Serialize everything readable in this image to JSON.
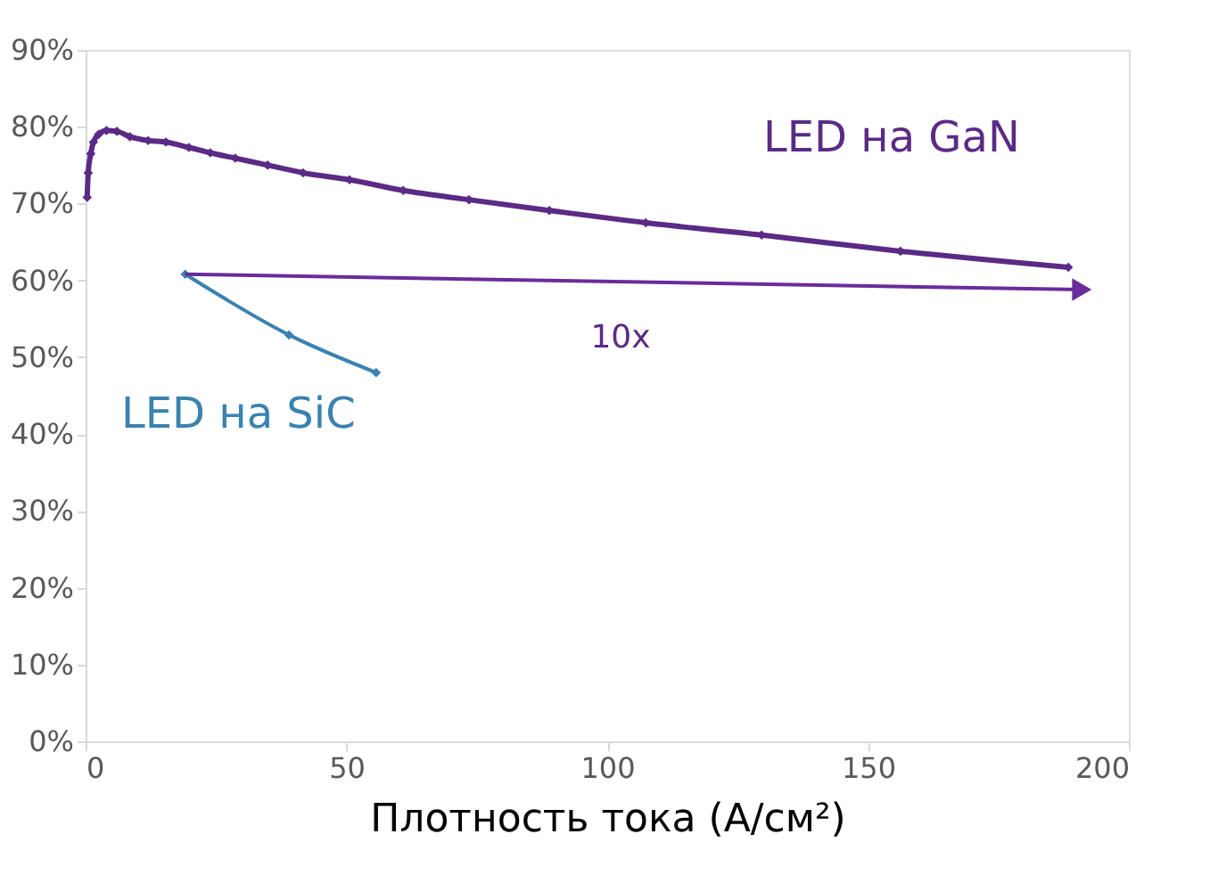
{
  "chart_data": {
    "type": "line",
    "xlabel": "Плотность тока (А/см²)",
    "xlim": [
      0,
      200
    ],
    "xticks": [
      0,
      50,
      100,
      150,
      200
    ],
    "ylim": [
      0,
      90
    ],
    "yticks": [
      {
        "value": 0,
        "label": "0%"
      },
      {
        "value": 10,
        "label": "10%"
      },
      {
        "value": 20,
        "label": "20%"
      },
      {
        "value": 30,
        "label": "30%"
      },
      {
        "value": 40,
        "label": "40%"
      },
      {
        "value": 50,
        "label": "50%"
      },
      {
        "value": 60,
        "label": "60%"
      },
      {
        "value": 70,
        "label": "70%"
      },
      {
        "value": 80,
        "label": "80%"
      },
      {
        "value": 90,
        "label": "90%"
      }
    ],
    "grid": false,
    "legend": false,
    "marker": "diamond",
    "line_style": "solid",
    "series": [
      {
        "name": "LED на GaN",
        "color": "#5b2a86",
        "x": [
          0.3,
          0.5,
          1,
          1.5,
          2.5,
          4,
          6,
          8.5,
          12,
          15.4,
          19.8,
          23.9,
          28.7,
          34.9,
          41.7,
          50.6,
          60.9,
          73.5,
          88.9,
          107.4,
          129.6,
          156.2,
          188.4
        ],
        "values": [
          70.8,
          74,
          76.5,
          78,
          79,
          79.5,
          79.4,
          78.7,
          78.2,
          78,
          77.3,
          76.6,
          75.9,
          75,
          74,
          73.1,
          71.7,
          70.5,
          69.1,
          67.5,
          65.9,
          63.8,
          61.7
        ]
      },
      {
        "name": "LED на SiC",
        "color": "#3a82b0",
        "x": [
          19.1,
          39,
          55.7
        ],
        "values": [
          60.8,
          52.9,
          48
        ]
      }
    ],
    "annotations": [
      "10x"
    ]
  }
}
